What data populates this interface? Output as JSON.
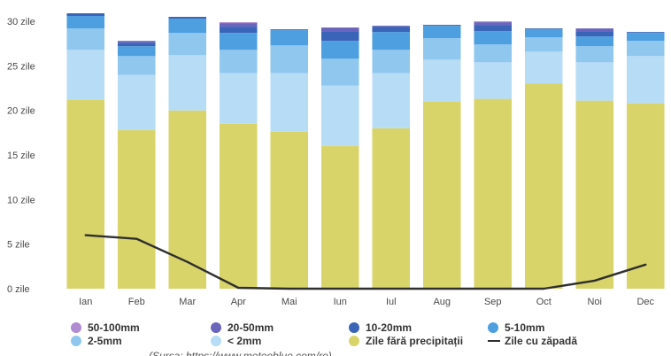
{
  "chart_data": {
    "type": "bar",
    "title": "",
    "xlabel": "",
    "ylabel": "",
    "ylim": [
      0,
      31
    ],
    "yticks": [
      {
        "value": 0,
        "label": "0 zile"
      },
      {
        "value": 5,
        "label": "5 zile"
      },
      {
        "value": 10,
        "label": "10 zile"
      },
      {
        "value": 15,
        "label": "15 zile"
      },
      {
        "value": 20,
        "label": "20 zile"
      },
      {
        "value": 25,
        "label": "25 zile"
      },
      {
        "value": 30,
        "label": "30 zile"
      }
    ],
    "categories": [
      "Ian",
      "Feb",
      "Mar",
      "Apr",
      "Mai",
      "Iun",
      "Iul",
      "Aug",
      "Sep",
      "Oct",
      "Noi",
      "Dec"
    ],
    "stacked_series": [
      {
        "name": "Zile fără precipitații",
        "color": "#d9d46a",
        "values": [
          21.2,
          17.8,
          20.0,
          18.5,
          17.6,
          16.0,
          18.0,
          21.0,
          21.3,
          23.0,
          21.1,
          20.8
        ]
      },
      {
        "name": "< 2mm",
        "color": "#b7dcf5",
        "values": [
          5.6,
          6.2,
          6.2,
          5.7,
          6.6,
          6.8,
          6.2,
          4.7,
          4.1,
          3.6,
          4.3,
          5.3
        ]
      },
      {
        "name": "2-5mm",
        "color": "#8fc7ef",
        "values": [
          2.4,
          2.1,
          2.5,
          2.6,
          3.1,
          3.0,
          2.6,
          2.4,
          2.0,
          1.6,
          1.8,
          1.7
        ]
      },
      {
        "name": "5-10mm",
        "color": "#4e9fe0",
        "values": [
          1.4,
          1.1,
          1.6,
          1.9,
          1.7,
          2.0,
          2.0,
          1.4,
          1.5,
          0.9,
          1.1,
          0.9
        ]
      },
      {
        "name": "10-20mm",
        "color": "#3a64b8",
        "values": [
          0.3,
          0.4,
          0.2,
          0.7,
          0.1,
          1.1,
          0.6,
          0.1,
          0.7,
          0.1,
          0.6,
          0.1
        ]
      },
      {
        "name": "20-50mm",
        "color": "#6a64bc",
        "values": [
          0,
          0.2,
          0,
          0.4,
          0,
          0.4,
          0.1,
          0,
          0.3,
          0,
          0.3,
          0
        ]
      },
      {
        "name": "50-100mm",
        "color": "#b18bd1",
        "values": [
          0,
          0,
          0,
          0.1,
          0,
          0,
          0,
          0,
          0.1,
          0,
          0,
          0
        ]
      }
    ],
    "line_series": {
      "name": "Zile cu zăpadă",
      "color": "#2f2f2f",
      "values": [
        6.0,
        5.6,
        3.0,
        0.1,
        0,
        0,
        0,
        0,
        0,
        0,
        0.9,
        2.7
      ]
    },
    "legend": {
      "placement": "bottom",
      "items": [
        {
          "label": "50-100mm",
          "color": "#b18bd1",
          "kind": "dot"
        },
        {
          "label": "20-50mm",
          "color": "#6a64bc",
          "kind": "dot"
        },
        {
          "label": "10-20mm",
          "color": "#3a64b8",
          "kind": "dot"
        },
        {
          "label": "5-10mm",
          "color": "#4e9fe0",
          "kind": "dot"
        },
        {
          "label": "2-5mm",
          "color": "#8fc7ef",
          "kind": "dot"
        },
        {
          "label": "< 2mm",
          "color": "#b7dcf5",
          "kind": "dot"
        },
        {
          "label": "Zile fără precipitații",
          "color": "#d9d46a",
          "kind": "dot"
        },
        {
          "label": "Zile cu zăpadă",
          "color": "#2f2f2f",
          "kind": "line"
        }
      ]
    },
    "caption": "(Sursa: https://www.meteoblue.com/ro)"
  }
}
